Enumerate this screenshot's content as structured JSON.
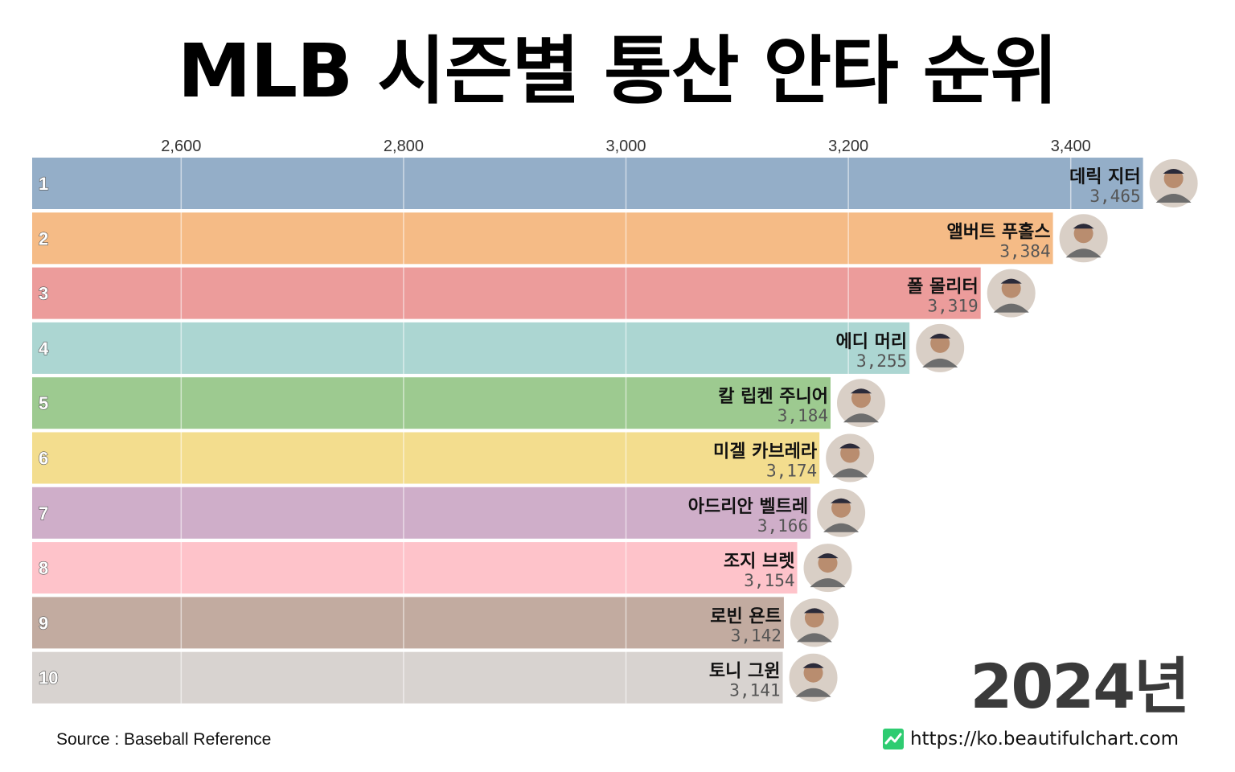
{
  "chart_data": {
    "type": "bar",
    "title": "MLB 시즌별 통산 안타 순위",
    "year_label": "2024년",
    "xlim": [
      2466,
      3500
    ],
    "xticks": [
      "2,600",
      "2,800",
      "3,000",
      "3,200",
      "3,400"
    ],
    "xtick_values": [
      2600,
      2800,
      3000,
      3200,
      3400
    ],
    "grid": true,
    "orientation": "horizontal",
    "entries": [
      {
        "rank": "1",
        "name": "데릭 지터",
        "value": 3465,
        "value_label": "3,465",
        "color": "#94aec8"
      },
      {
        "rank": "2",
        "name": "앨버트 푸홀스",
        "value": 3384,
        "value_label": "3,384",
        "color": "#f5bb86"
      },
      {
        "rank": "3",
        "name": "폴 몰리터",
        "value": 3319,
        "value_label": "3,319",
        "color": "#ec9c9b"
      },
      {
        "rank": "4",
        "name": "에디 머리",
        "value": 3255,
        "value_label": "3,255",
        "color": "#acd6d2"
      },
      {
        "rank": "5",
        "name": "칼 립켄 주니어",
        "value": 3184,
        "value_label": "3,184",
        "color": "#9dca90"
      },
      {
        "rank": "6",
        "name": "미겔 카브레라",
        "value": 3174,
        "value_label": "3,174",
        "color": "#f3dd8e"
      },
      {
        "rank": "7",
        "name": "아드리안 벨트레",
        "value": 3166,
        "value_label": "3,166",
        "color": "#cfaec9"
      },
      {
        "rank": "8",
        "name": "조지 브렛",
        "value": 3154,
        "value_label": "3,154",
        "color": "#fec3ca"
      },
      {
        "rank": "9",
        "name": "로빈 욘트",
        "value": 3142,
        "value_label": "3,142",
        "color": "#c2aba0"
      },
      {
        "rank": "10",
        "name": "토니 그윈",
        "value": 3141,
        "value_label": "3,141",
        "color": "#d8d3d0"
      }
    ]
  },
  "footer": {
    "source": "Source : Baseball Reference",
    "site": "https://ko.beautifulchart.com",
    "logo_color": "#2ecc71"
  }
}
